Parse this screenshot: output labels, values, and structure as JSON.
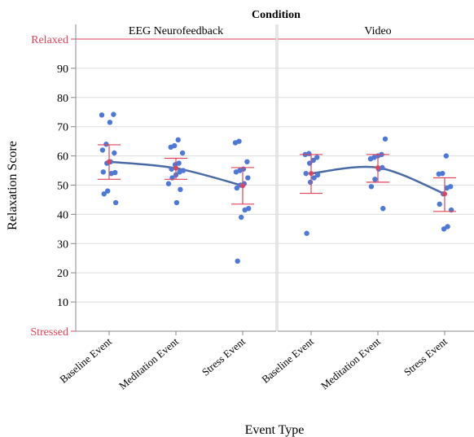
{
  "chart_data": {
    "type": "scatter",
    "title": "Condition",
    "xlabel": "Event Type",
    "ylabel": "Relaxation Score",
    "ylim": [
      0,
      100
    ],
    "y_ticks": [
      {
        "value": 100,
        "label": "Relaxed"
      },
      {
        "value": 90,
        "label": "90"
      },
      {
        "value": 80,
        "label": "80"
      },
      {
        "value": 70,
        "label": "70"
      },
      {
        "value": 60,
        "label": "60"
      },
      {
        "value": 50,
        "label": "50"
      },
      {
        "value": 40,
        "label": "40"
      },
      {
        "value": 30,
        "label": "30"
      },
      {
        "value": 20,
        "label": "20"
      },
      {
        "value": 10,
        "label": "10"
      },
      {
        "value": 0,
        "label": "Stressed"
      }
    ],
    "categories": [
      "Baseline Event",
      "Meditation Event",
      "Stress Event"
    ],
    "panels": [
      {
        "name": "EEG Neurofeedback",
        "points": [
          [
            74.0,
            74.2,
            71.5,
            64.0,
            62.0,
            61.0,
            58.0,
            57.5,
            54.5,
            54.3,
            54.0,
            48.0,
            47.0,
            44.0
          ],
          [
            65.5,
            63.5,
            63.0,
            61.0,
            57.5,
            57.0,
            55.5,
            55.0,
            54.5,
            53.5,
            52.5,
            50.5,
            48.5,
            44.0
          ],
          [
            65.0,
            64.5,
            58.0,
            55.5,
            55.0,
            54.5,
            52.5,
            50.5,
            50.0,
            49.0,
            42.0,
            41.5,
            39.0,
            24.0
          ]
        ],
        "means": [
          58.0,
          55.8,
          49.8
        ],
        "err_low": [
          52.0,
          52.0,
          43.5
        ],
        "err_high": [
          63.8,
          59.2,
          56.0
        ]
      },
      {
        "name": "Video",
        "points": [
          [
            60.8,
            60.5,
            59.5,
            58.5,
            57.5,
            54.0,
            53.5,
            52.5,
            51.0,
            33.5
          ],
          [
            65.8,
            60.5,
            60.0,
            59.5,
            59.0,
            56.0,
            55.5,
            52.0,
            49.5,
            42.0
          ],
          [
            60.0,
            54.0,
            53.8,
            49.5,
            49.0,
            47.0,
            43.5,
            41.5,
            35.8,
            35.0
          ]
        ],
        "means": [
          54.0,
          56.0,
          47.0
        ],
        "err_low": [
          47.2,
          51.0,
          41.0
        ],
        "err_high": [
          60.5,
          60.5,
          52.5
        ]
      }
    ],
    "colors": {
      "point": "#4c78d8",
      "trend": "#4a6aa5",
      "error": "#e0445a",
      "extreme_label": "#e0445a",
      "grid": "#dddddd",
      "axis": "#888888"
    }
  }
}
